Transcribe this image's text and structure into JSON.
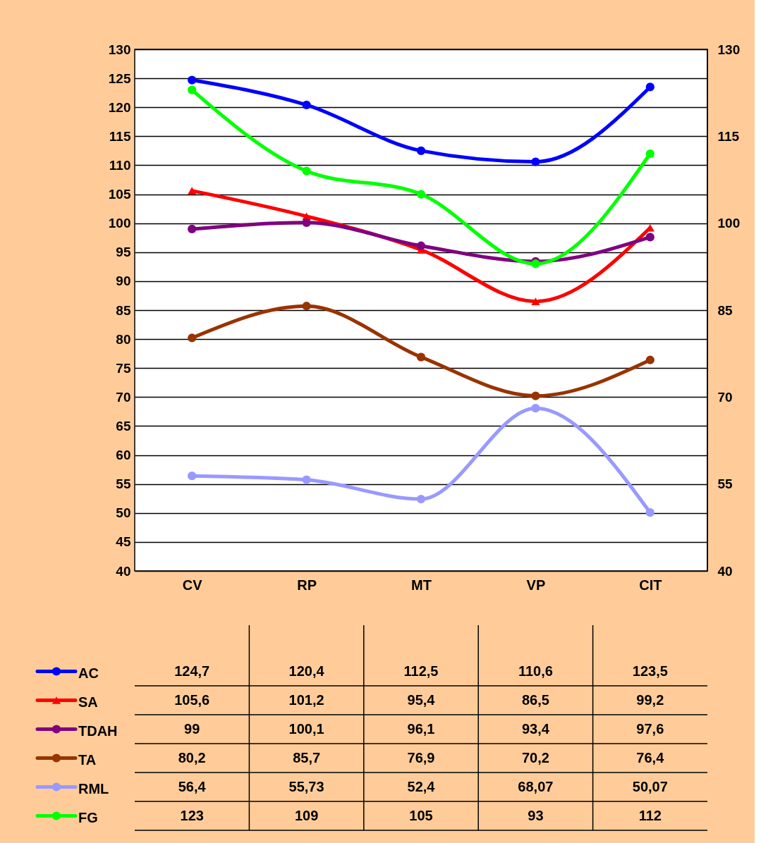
{
  "chart_data": {
    "type": "line",
    "categories": [
      "CV",
      "RP",
      "MT",
      "VP",
      "CIT"
    ],
    "series": [
      {
        "name": "AC",
        "color": "#0000ff",
        "marker": "circle",
        "values": [
          124.7,
          120.4,
          112.5,
          110.6,
          123.5
        ],
        "value_labels": [
          "124,7",
          "120,4",
          "112,5",
          "110,6",
          "123,5"
        ]
      },
      {
        "name": "SA",
        "color": "#ff0000",
        "marker": "triangle",
        "values": [
          105.6,
          101.2,
          95.4,
          86.5,
          99.2
        ],
        "value_labels": [
          "105,6",
          "101,2",
          "95,4",
          "86,5",
          "99,2"
        ]
      },
      {
        "name": "TDAH",
        "color": "#800080",
        "marker": "circle",
        "values": [
          99,
          100.1,
          96.1,
          93.4,
          97.6
        ],
        "value_labels": [
          "99",
          "100,1",
          "96,1",
          "93,4",
          "97,6"
        ]
      },
      {
        "name": "TA",
        "color": "#993300",
        "marker": "circle",
        "values": [
          80.2,
          85.7,
          76.9,
          70.2,
          76.4
        ],
        "value_labels": [
          "80,2",
          "85,7",
          "76,9",
          "70,2",
          "76,4"
        ]
      },
      {
        "name": "RML",
        "color": "#9999ff",
        "marker": "circle",
        "values": [
          56.4,
          55.73,
          52.4,
          68.07,
          50.07
        ],
        "value_labels": [
          "56,4",
          "55,73",
          "52,4",
          "68,07",
          "50,07"
        ]
      },
      {
        "name": "FG",
        "color": "#00ff00",
        "marker": "circle",
        "values": [
          123,
          109,
          105,
          93,
          112
        ],
        "value_labels": [
          "123",
          "109",
          "105",
          "93",
          "112"
        ]
      }
    ],
    "ylim": [
      40,
      130
    ],
    "yticks": [
      40,
      45,
      50,
      55,
      60,
      65,
      70,
      75,
      80,
      85,
      90,
      95,
      100,
      105,
      110,
      115,
      120,
      125,
      130
    ],
    "y2lim": [
      40,
      130
    ],
    "y2ticks": [
      40,
      55,
      70,
      85,
      100,
      115,
      130
    ],
    "grid": "y",
    "legend": "bottom",
    "line_style": "solid"
  }
}
